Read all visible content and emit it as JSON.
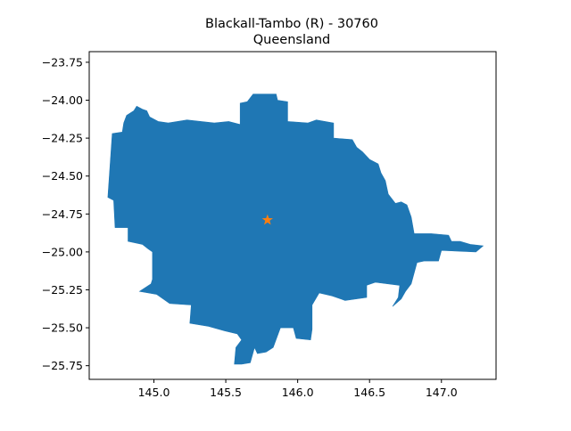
{
  "title": {
    "line1": "Blackall-Tambo (R) - 30760",
    "line2": "Queensland"
  },
  "colors": {
    "region_fill": "#1f77b4",
    "marker": "#ff7f0e",
    "axes": "#000000",
    "background": "#ffffff"
  },
  "chart_data": {
    "type": "map",
    "xlim": [
      144.55,
      147.38
    ],
    "ylim": [
      -25.84,
      -23.68
    ],
    "xticks": [
      145.0,
      145.5,
      146.0,
      146.5,
      147.0
    ],
    "xtick_labels": [
      "145.0",
      "145.5",
      "146.0",
      "146.5",
      "147.0"
    ],
    "yticks": [
      -23.75,
      -24.0,
      -24.25,
      -24.5,
      -24.75,
      -25.0,
      -25.25,
      -25.5,
      -25.75
    ],
    "ytick_labels": [
      "−23.75",
      "−24.00",
      "−24.25",
      "−24.50",
      "−24.75",
      "−25.00",
      "−25.25",
      "−25.50",
      "−25.75"
    ],
    "grid": false,
    "legend": "none",
    "region": {
      "name": "Blackall-Tambo (R)",
      "polygon": [
        [
          144.68,
          -24.64
        ],
        [
          144.71,
          -24.22
        ],
        [
          144.78,
          -24.21
        ],
        [
          144.79,
          -24.15
        ],
        [
          144.81,
          -24.1
        ],
        [
          144.86,
          -24.07
        ],
        [
          144.88,
          -24.04
        ],
        [
          144.92,
          -24.06
        ],
        [
          144.95,
          -24.07
        ],
        [
          144.97,
          -24.11
        ],
        [
          145.03,
          -24.14
        ],
        [
          145.1,
          -24.15
        ],
        [
          145.23,
          -24.13
        ],
        [
          145.42,
          -24.15
        ],
        [
          145.52,
          -24.14
        ],
        [
          145.6,
          -24.16
        ],
        [
          145.6,
          -24.02
        ],
        [
          145.65,
          -24.01
        ],
        [
          145.69,
          -23.96
        ],
        [
          145.85,
          -23.96
        ],
        [
          145.86,
          -24.0
        ],
        [
          145.93,
          -24.01
        ],
        [
          145.93,
          -24.14
        ],
        [
          146.07,
          -24.15
        ],
        [
          146.13,
          -24.13
        ],
        [
          146.25,
          -24.15
        ],
        [
          146.25,
          -24.25
        ],
        [
          146.38,
          -24.26
        ],
        [
          146.41,
          -24.31
        ],
        [
          146.45,
          -24.34
        ],
        [
          146.5,
          -24.39
        ],
        [
          146.56,
          -24.42
        ],
        [
          146.58,
          -24.48
        ],
        [
          146.61,
          -24.53
        ],
        [
          146.63,
          -24.62
        ],
        [
          146.68,
          -24.68
        ],
        [
          146.72,
          -24.67
        ],
        [
          146.76,
          -24.69
        ],
        [
          146.79,
          -24.77
        ],
        [
          146.81,
          -24.88
        ],
        [
          146.93,
          -24.88
        ],
        [
          147.05,
          -24.89
        ],
        [
          147.07,
          -24.93
        ],
        [
          147.13,
          -24.93
        ],
        [
          147.2,
          -24.95
        ],
        [
          147.29,
          -24.96
        ],
        [
          147.24,
          -25.0
        ],
        [
          147.0,
          -24.99
        ],
        [
          146.98,
          -25.06
        ],
        [
          146.88,
          -25.06
        ],
        [
          146.83,
          -25.07
        ],
        [
          146.79,
          -25.21
        ],
        [
          146.75,
          -25.26
        ],
        [
          146.72,
          -25.31
        ],
        [
          146.66,
          -25.36
        ],
        [
          146.7,
          -25.3
        ],
        [
          146.71,
          -25.22
        ],
        [
          146.54,
          -25.2
        ],
        [
          146.48,
          -25.22
        ],
        [
          146.48,
          -25.3
        ],
        [
          146.33,
          -25.32
        ],
        [
          146.24,
          -25.29
        ],
        [
          146.15,
          -25.27
        ],
        [
          146.1,
          -25.35
        ],
        [
          146.1,
          -25.51
        ],
        [
          146.09,
          -25.58
        ],
        [
          145.99,
          -25.57
        ],
        [
          145.97,
          -25.5
        ],
        [
          145.88,
          -25.5
        ],
        [
          145.83,
          -25.63
        ],
        [
          145.78,
          -25.66
        ],
        [
          145.72,
          -25.67
        ],
        [
          145.7,
          -25.63
        ],
        [
          145.67,
          -25.73
        ],
        [
          145.61,
          -25.74
        ],
        [
          145.56,
          -25.74
        ],
        [
          145.57,
          -25.63
        ],
        [
          145.61,
          -25.58
        ],
        [
          145.58,
          -25.54
        ],
        [
          145.49,
          -25.52
        ],
        [
          145.38,
          -25.49
        ],
        [
          145.25,
          -25.47
        ],
        [
          145.26,
          -25.35
        ],
        [
          145.11,
          -25.34
        ],
        [
          145.02,
          -25.28
        ],
        [
          144.9,
          -25.26
        ],
        [
          144.98,
          -25.21
        ],
        [
          144.99,
          -25.18
        ],
        [
          144.99,
          -25.0
        ],
        [
          144.96,
          -24.98
        ],
        [
          144.92,
          -24.95
        ],
        [
          144.82,
          -24.93
        ],
        [
          144.82,
          -24.84
        ],
        [
          144.73,
          -24.84
        ],
        [
          144.72,
          -24.66
        ]
      ]
    },
    "marker": {
      "label": "centroid",
      "lon": 145.79,
      "lat": -24.79,
      "symbol": "star"
    }
  }
}
